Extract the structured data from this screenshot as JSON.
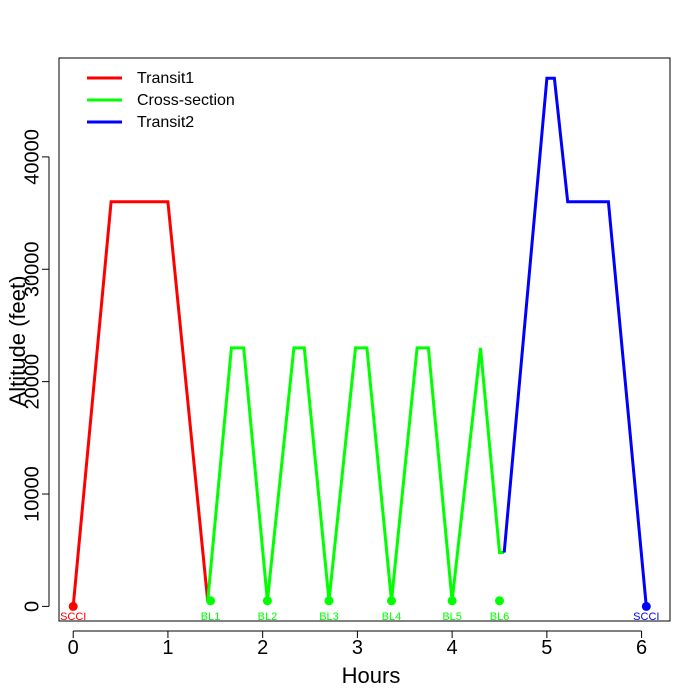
{
  "chart_data": {
    "type": "line",
    "title": "",
    "xlabel": "Hours",
    "ylabel": "Altitude (feet)",
    "xlim": [
      -0.15,
      6.3
    ],
    "ylim": [
      -1300,
      48800
    ],
    "x_ticks": [
      0,
      1,
      2,
      3,
      4,
      5,
      6
    ],
    "y_ticks": [
      0,
      10000,
      20000,
      30000,
      40000
    ],
    "grid": false,
    "legend_position": "top-left",
    "series": [
      {
        "name": "Transit1",
        "color": "#ff0000",
        "points": [
          [
            0,
            0
          ],
          [
            0.4,
            36000
          ],
          [
            1.0,
            36000
          ],
          [
            1.42,
            500
          ]
        ]
      },
      {
        "name": "Cross-section",
        "color": "#00ff00",
        "points": [
          [
            1.42,
            500
          ],
          [
            1.67,
            23000
          ],
          [
            1.8,
            23000
          ],
          [
            2.05,
            500
          ],
          [
            2.33,
            23000
          ],
          [
            2.44,
            23000
          ],
          [
            2.7,
            500
          ],
          [
            2.98,
            23000
          ],
          [
            3.1,
            23000
          ],
          [
            3.36,
            500
          ],
          [
            3.63,
            23000
          ],
          [
            3.75,
            23000
          ],
          [
            4.0,
            500
          ],
          [
            4.3,
            23000
          ],
          [
            4.5,
            4800
          ],
          [
            4.55,
            4800
          ]
        ]
      },
      {
        "name": "Transit2",
        "color": "#0000ff",
        "points": [
          [
            4.55,
            4800
          ],
          [
            5.0,
            47000
          ],
          [
            5.08,
            47000
          ],
          [
            5.22,
            36000
          ],
          [
            5.65,
            36000
          ],
          [
            6.05,
            0
          ]
        ]
      }
    ],
    "markers": [
      {
        "label": "SCCI",
        "x": 0.0,
        "y": 0,
        "color": "#ff0000"
      },
      {
        "label": "BL1",
        "x": 1.45,
        "y": 500,
        "color": "#00ff00"
      },
      {
        "label": "BL2",
        "x": 2.05,
        "y": 500,
        "color": "#00ff00"
      },
      {
        "label": "BL3",
        "x": 2.7,
        "y": 500,
        "color": "#00ff00"
      },
      {
        "label": "BL4",
        "x": 3.36,
        "y": 500,
        "color": "#00ff00"
      },
      {
        "label": "BL5",
        "x": 4.0,
        "y": 500,
        "color": "#00ff00"
      },
      {
        "label": "BL6",
        "x": 4.5,
        "y": 500,
        "color": "#00ff00"
      },
      {
        "label": "SCCI",
        "x": 6.05,
        "y": 0,
        "color": "#0000ff"
      }
    ]
  }
}
